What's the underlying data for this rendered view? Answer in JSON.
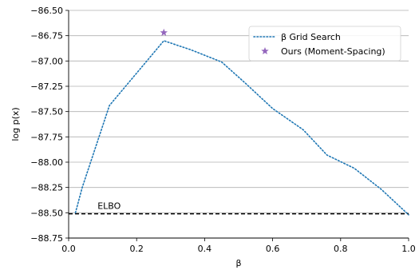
{
  "chart_data": {
    "type": "line",
    "xlabel": "β",
    "ylabel": "log p(x)",
    "xlim": [
      0.0,
      1.0
    ],
    "ylim": [
      -88.75,
      -86.5
    ],
    "y_inverted_display": "top is -86.50",
    "grid": "horizontal",
    "legend_position": "top-right",
    "x_ticks": [
      {
        "value": 0.0,
        "label": "0.0"
      },
      {
        "value": 0.2,
        "label": "0.2"
      },
      {
        "value": 0.4,
        "label": "0.4"
      },
      {
        "value": 0.6,
        "label": "0.6"
      },
      {
        "value": 0.8,
        "label": "0.8"
      },
      {
        "value": 1.0,
        "label": "1.0"
      }
    ],
    "y_ticks": [
      {
        "value": -86.5,
        "label": "−86.50"
      },
      {
        "value": -86.75,
        "label": "−86.75"
      },
      {
        "value": -87.0,
        "label": "−87.00"
      },
      {
        "value": -87.25,
        "label": "−87.25"
      },
      {
        "value": -87.5,
        "label": "−87.50"
      },
      {
        "value": -87.75,
        "label": "−87.75"
      },
      {
        "value": -88.0,
        "label": "−88.00"
      },
      {
        "value": -88.25,
        "label": "−88.25"
      },
      {
        "value": -88.5,
        "label": "−88.50"
      },
      {
        "value": -88.75,
        "label": "−88.75"
      }
    ],
    "series": [
      {
        "name": "β Grid Search",
        "style": "dotted",
        "color": "#1f77b4",
        "x": [
          0.02,
          0.04,
          0.12,
          0.28,
          0.36,
          0.45,
          0.52,
          0.6,
          0.69,
          0.76,
          0.84,
          0.92,
          1.0
        ],
        "y": [
          -88.5,
          -88.25,
          -87.44,
          -86.8,
          -86.89,
          -87.01,
          -87.22,
          -87.47,
          -87.68,
          -87.93,
          -88.06,
          -88.27,
          -88.52
        ]
      },
      {
        "name": "Ours (Moment-Spacing)",
        "style": "star",
        "color": "#9467bd",
        "x": [
          0.28
        ],
        "y": [
          -86.72
        ]
      }
    ],
    "reference_line": {
      "label": "ELBO",
      "y": -88.51,
      "style": "dashed",
      "color": "#000000"
    }
  }
}
